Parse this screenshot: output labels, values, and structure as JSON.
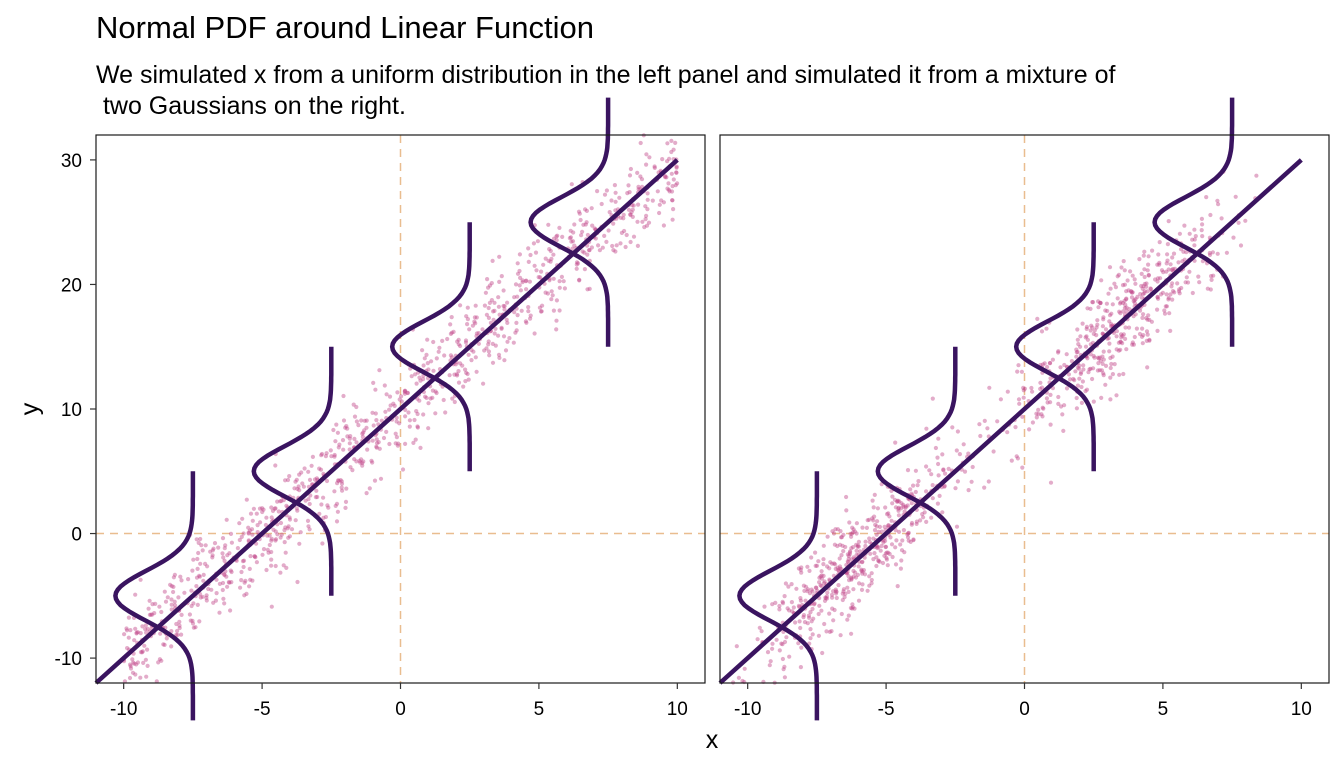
{
  "title": "Normal PDF around Linear Function",
  "subtitle": "We simulated x from a uniform distribution in the left panel and simulated it from a mixture of\n two Gaussians on the right.",
  "colors": {
    "points": "#c2488a",
    "line": "#3a1460",
    "reference": "#e9bd8f",
    "panel_border": "#1a1a1a",
    "text": "#000000"
  },
  "chart_data": {
    "type": "scatter",
    "xlabel": "x",
    "ylabel": "y",
    "xlim": [
      -11,
      11
    ],
    "ylim": [
      -12,
      32
    ],
    "x_ticks": [
      -10,
      -5,
      0,
      5,
      10
    ],
    "x_tick_labels": [
      "-10",
      "-5",
      "0",
      "5",
      "10"
    ],
    "y_ticks": [
      -10,
      0,
      10,
      20,
      30
    ],
    "y_tick_labels": [
      "-10",
      "0",
      "10",
      "20",
      "30"
    ],
    "grid": false,
    "reference_lines": {
      "x": 0,
      "y": 0,
      "style": "dashed"
    },
    "regression_line": {
      "intercept": 10,
      "slope": 2,
      "x_range": [
        -11,
        10
      ]
    },
    "normal_pdf_curves": {
      "x_centers": [
        -7.5,
        -2.5,
        2.5,
        7.5
      ],
      "sd": 2,
      "y_span_half": 10
    },
    "panels": [
      {
        "id": "left",
        "x_distribution": "uniform",
        "x_range": [
          -10,
          10
        ],
        "n_points": 1000,
        "noise_sd": 2
      },
      {
        "id": "right",
        "x_distribution": "mixture of two Gaussians",
        "components": [
          {
            "mean": -6,
            "sd": 2,
            "weight": 0.5
          },
          {
            "mean": 3.5,
            "sd": 2,
            "weight": 0.5
          }
        ],
        "n_points": 1000,
        "noise_sd": 2
      }
    ]
  }
}
